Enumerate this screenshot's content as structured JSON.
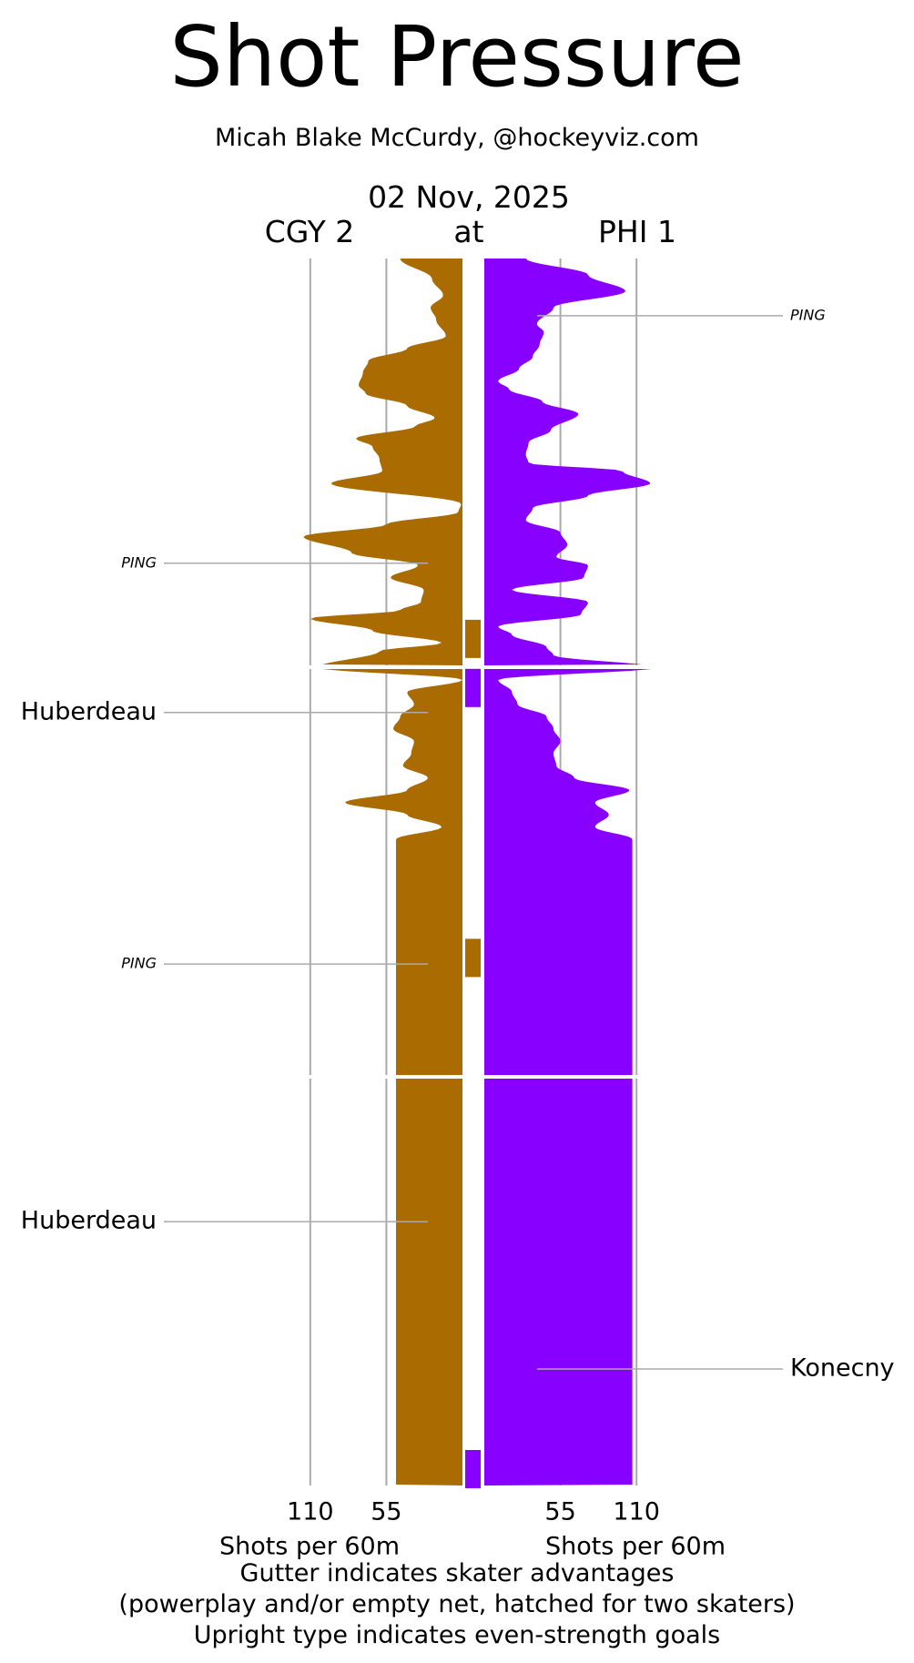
{
  "title": "Shot Pressure",
  "subtitle": "Micah Blake McCurdy, @hockeyviz.com",
  "date": "02 Nov, 2025",
  "away_label": "CGY 2",
  "at_label": "at",
  "home_label": "PHI 1",
  "footer": {
    "line1": "Gutter indicates skater advantages",
    "line2": "(powerplay and/or empty net, hatched for two skaters)",
    "line3": "Upright type indicates even-strength goals"
  },
  "colors": {
    "away": "#aa6c00",
    "home": "#8800ff",
    "grid": "#aaaaaa"
  },
  "chart_data": {
    "type": "area",
    "orientation": "vertical mirrored",
    "y_axis": "game time (three periods)",
    "x_unit_label": "Shots per 60m",
    "x_ticks": [
      110,
      55
    ],
    "x_range": [
      0,
      130
    ],
    "grid": true,
    "series": [
      {
        "name": "CGY 2",
        "side": "left",
        "values": [
          [
            0.0,
            45
          ],
          [
            0.05,
            22
          ],
          [
            0.09,
            14
          ],
          [
            0.12,
            23
          ],
          [
            0.15,
            19
          ],
          [
            0.19,
            12
          ],
          [
            0.22,
            40
          ],
          [
            0.25,
            68
          ],
          [
            0.28,
            72
          ],
          [
            0.31,
            75
          ],
          [
            0.33,
            70
          ],
          [
            0.36,
            40
          ],
          [
            0.39,
            20
          ],
          [
            0.41,
            34
          ],
          [
            0.44,
            77
          ],
          [
            0.46,
            65
          ],
          [
            0.49,
            60
          ],
          [
            0.52,
            58
          ],
          [
            0.55,
            95
          ],
          [
            0.6,
            1
          ],
          [
            0.62,
            3
          ],
          [
            0.65,
            55
          ],
          [
            0.68,
            115
          ],
          [
            0.72,
            80
          ],
          [
            0.75,
            32
          ],
          [
            0.78,
            52
          ],
          [
            0.81,
            28
          ],
          [
            0.84,
            30
          ],
          [
            0.86,
            45
          ],
          [
            0.88,
            110
          ],
          [
            0.91,
            65
          ],
          [
            0.94,
            15
          ],
          [
            0.96,
            60
          ],
          [
            1.0,
            105
          ],
          [
            1.03,
            0
          ],
          [
            1.06,
            40
          ],
          [
            1.09,
            35
          ],
          [
            1.12,
            45
          ],
          [
            1.15,
            50
          ],
          [
            1.18,
            35
          ],
          [
            1.21,
            37
          ],
          [
            1.24,
            43
          ],
          [
            1.27,
            25
          ],
          [
            1.3,
            40
          ],
          [
            1.33,
            85
          ],
          [
            1.36,
            40
          ],
          [
            1.39,
            15
          ],
          [
            1.42,
            48
          ]
        ]
      },
      {
        "name": "PHI 1",
        "side": "right",
        "values": [
          [
            0.0,
            30
          ],
          [
            0.04,
            75
          ],
          [
            0.08,
            102
          ],
          [
            0.12,
            50
          ],
          [
            0.16,
            38
          ],
          [
            0.18,
            43
          ],
          [
            0.21,
            40
          ],
          [
            0.24,
            35
          ],
          [
            0.27,
            25
          ],
          [
            0.3,
            10
          ],
          [
            0.32,
            18
          ],
          [
            0.35,
            42
          ],
          [
            0.38,
            68
          ],
          [
            0.42,
            48
          ],
          [
            0.45,
            32
          ],
          [
            0.48,
            30
          ],
          [
            0.5,
            32
          ],
          [
            0.52,
            100
          ],
          [
            0.55,
            120
          ],
          [
            0.58,
            75
          ],
          [
            0.61,
            35
          ],
          [
            0.64,
            30
          ],
          [
            0.67,
            55
          ],
          [
            0.7,
            60
          ],
          [
            0.73,
            52
          ],
          [
            0.75,
            75
          ],
          [
            0.78,
            72
          ],
          [
            0.81,
            20
          ],
          [
            0.84,
            75
          ],
          [
            0.87,
            70
          ],
          [
            0.9,
            10
          ],
          [
            0.92,
            20
          ],
          [
            0.95,
            45
          ],
          [
            0.97,
            50
          ],
          [
            1.0,
            125
          ],
          [
            1.03,
            10
          ],
          [
            1.06,
            20
          ],
          [
            1.09,
            24
          ],
          [
            1.12,
            45
          ],
          [
            1.15,
            50
          ],
          [
            1.18,
            55
          ],
          [
            1.21,
            50
          ],
          [
            1.24,
            52
          ],
          [
            1.27,
            65
          ],
          [
            1.3,
            105
          ],
          [
            1.33,
            80
          ],
          [
            1.36,
            90
          ],
          [
            1.39,
            80
          ],
          [
            1.42,
            107
          ]
        ]
      }
    ],
    "gutter_marks": [
      {
        "team": "CGY 2",
        "period": 1,
        "position": 0.93
      },
      {
        "team": "PHI 1",
        "period": 2,
        "position": 0.05
      },
      {
        "team": "CGY 2",
        "period": 2,
        "position": 0.71
      },
      {
        "team": "PHI 1",
        "period": 3,
        "position": 0.96
      }
    ],
    "annotations": [
      {
        "label": "PING",
        "side": "right",
        "italic": true,
        "period": 1,
        "position": 0.14
      },
      {
        "label": "PING",
        "side": "left",
        "italic": true,
        "period": 1,
        "position": 0.745
      },
      {
        "label": "Huberdeau",
        "side": "left",
        "italic": false,
        "period": 2,
        "position": 0.11
      },
      {
        "label": "PING",
        "side": "left",
        "italic": true,
        "period": 2,
        "position": 0.725
      },
      {
        "label": "Huberdeau",
        "side": "left",
        "italic": false,
        "period": 3,
        "position": 0.355
      },
      {
        "label": "Konecny",
        "side": "right",
        "italic": false,
        "period": 3,
        "position": 0.715
      }
    ]
  }
}
